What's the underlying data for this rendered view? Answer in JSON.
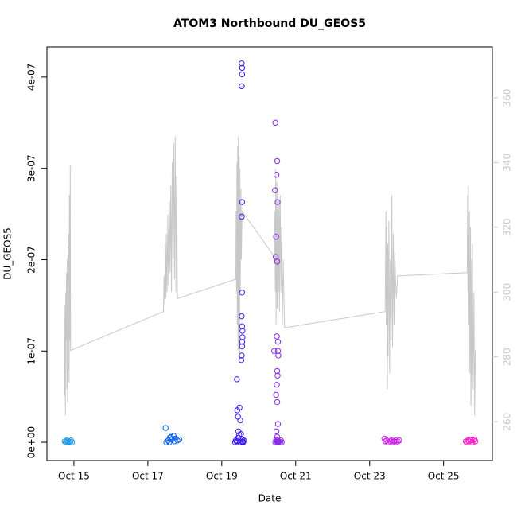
{
  "chart_data": {
    "type": "scatter",
    "title": "ATOM3 Northbound DU_GEOS5",
    "xlabel": "Date",
    "ylabel": "DU_GEOS5",
    "xlim": [
      14.27,
      26.32
    ],
    "xticks": [
      {
        "value": 15,
        "label": "Oct 15"
      },
      {
        "value": 17,
        "label": "Oct 17"
      },
      {
        "value": 19,
        "label": "Oct 19"
      },
      {
        "value": 21,
        "label": "Oct 21"
      },
      {
        "value": 23,
        "label": "Oct 23"
      },
      {
        "value": 25,
        "label": "Oct 25"
      }
    ],
    "ylim": [
      -2e-08,
      4.33e-07
    ],
    "yticks": [
      {
        "value": 0,
        "label": "0e+00"
      },
      {
        "value": 1e-07,
        "label": "1e-07"
      },
      {
        "value": 2e-07,
        "label": "2e-07"
      },
      {
        "value": 3e-07,
        "label": "3e-07"
      },
      {
        "value": 4e-07,
        "label": "4e-07"
      }
    ],
    "y2lim": [
      248,
      375.7
    ],
    "y2ticks": [
      260,
      280,
      300,
      320,
      340,
      360
    ],
    "y2color": "#c8c8c8",
    "series": [
      {
        "color": "#1e9be8",
        "x": [
          14.75,
          14.78,
          14.8,
          14.82,
          14.85,
          14.88,
          14.9,
          14.92,
          14.95
        ],
        "values": [
          1e-09,
          0,
          2e-09,
          1e-09,
          0,
          1e-09,
          0,
          2e-09,
          0
        ]
      },
      {
        "color": "#0a5ee8",
        "x": [
          17.48,
          17.5,
          17.55,
          17.58,
          17.6,
          17.62,
          17.65,
          17.7,
          17.72,
          17.75,
          17.8,
          17.85
        ],
        "values": [
          1.57e-08,
          0,
          2e-09,
          0,
          5e-09,
          6e-09,
          3e-09,
          7e-09,
          1e-09,
          4e-09,
          2e-09,
          3e-09
        ]
      },
      {
        "color": "#3b1ef0",
        "x": [
          19.36,
          19.38,
          19.4,
          19.41,
          19.42,
          19.44,
          19.45,
          19.47,
          19.48,
          19.5,
          19.52,
          19.53,
          19.54,
          19.55,
          19.55,
          19.56,
          19.56,
          19.55,
          19.54,
          19.55,
          19.54,
          19.55,
          19.54,
          19.55,
          19.55,
          19.54,
          19.56,
          19.56,
          19.57,
          19.58,
          19.6,
          19.45,
          19.43,
          19.5
        ],
        "values": [
          0,
          2e-09,
          1e-09,
          6.9e-08,
          3.5e-08,
          2.8e-08,
          1.2e-08,
          8e-09,
          3.8e-08,
          2.4e-08,
          9e-09,
          9e-08,
          9.5e-08,
          1.05e-07,
          1.1e-07,
          1.15e-07,
          1.22e-07,
          1.27e-07,
          1.38e-07,
          1.64e-07,
          2.47e-07,
          2.63e-07,
          3.9e-07,
          4.03e-07,
          4.1e-07,
          4.15e-07,
          0,
          3e-09,
          1e-09,
          0,
          2e-09,
          5e-09,
          1e-09,
          0
        ]
      },
      {
        "color": "#8b2be8",
        "x": [
          20.42,
          20.44,
          20.45,
          20.46,
          20.47,
          20.48,
          20.49,
          20.5,
          20.5,
          20.51,
          20.52,
          20.52,
          20.53,
          20.5,
          20.51,
          20.49,
          20.47,
          20.5,
          20.52,
          20.48,
          20.5,
          20.49,
          20.51,
          20.52,
          20.53,
          20.47,
          20.55,
          20.58,
          20.6,
          20.62,
          20.45,
          20.48
        ],
        "values": [
          1e-07,
          2.76e-07,
          3.5e-07,
          2.03e-07,
          2.25e-07,
          2.93e-07,
          1.16e-07,
          1.98e-07,
          3.08e-07,
          2.63e-07,
          1.1e-07,
          1e-07,
          9.5e-08,
          7.8e-08,
          7.3e-08,
          6.3e-08,
          5.2e-08,
          4.4e-08,
          2e-08,
          1.2e-08,
          6e-09,
          2e-09,
          0,
          1e-09,
          0,
          3e-09,
          1e-09,
          0,
          2e-09,
          0,
          0,
          1e-09
        ]
      },
      {
        "color": "#c81ee6",
        "x": [
          23.4,
          23.43,
          23.46,
          23.5,
          23.53,
          23.56,
          23.6,
          23.63,
          23.66,
          23.7,
          23.73,
          23.76,
          23.8
        ],
        "values": [
          4e-09,
          1e-09,
          2e-09,
          0,
          3e-09,
          1e-09,
          2e-09,
          0,
          1e-09,
          2e-09,
          0,
          1e-09,
          2e-09
        ]
      },
      {
        "color": "#ff1ec8",
        "x": [
          25.6,
          25.63,
          25.66,
          25.69,
          25.72,
          25.75,
          25.78,
          25.81,
          25.84,
          25.86
        ],
        "values": [
          1e-09,
          0,
          2e-09,
          1e-09,
          3e-09,
          2e-09,
          0,
          2e-09,
          3e-09,
          1e-09
        ]
      }
    ],
    "line": {
      "color": "#c8c8c8",
      "axis": "y2",
      "x": [
        14.74,
        14.75,
        14.76,
        14.77,
        14.78,
        14.79,
        14.8,
        14.81,
        14.82,
        14.83,
        14.84,
        14.85,
        14.86,
        14.87,
        14.88,
        14.89,
        14.9,
        14.91,
        17.42,
        17.44,
        17.46,
        17.47,
        17.49,
        17.5,
        17.52,
        17.54,
        17.56,
        17.58,
        17.6,
        17.62,
        17.64,
        17.66,
        17.68,
        17.7,
        17.72,
        17.74,
        17.76,
        17.78,
        17.8,
        19.38,
        19.39,
        19.4,
        19.41,
        19.42,
        19.43,
        19.44,
        19.45,
        19.46,
        19.47,
        19.48,
        19.49,
        19.5,
        19.52,
        19.53,
        19.55,
        20.42,
        20.43,
        20.45,
        20.46,
        20.47,
        20.49,
        20.5,
        20.52,
        20.53,
        20.55,
        20.56,
        20.58,
        20.6,
        20.62,
        20.64,
        20.66,
        20.7,
        23.42,
        23.44,
        23.45,
        23.46,
        23.48,
        23.49,
        23.5,
        23.52,
        23.54,
        23.56,
        23.58,
        23.6,
        23.62,
        23.64,
        23.66,
        23.68,
        23.72,
        23.76,
        25.64,
        25.65,
        25.66,
        25.67,
        25.68,
        25.7,
        25.71,
        25.73,
        25.74,
        25.76,
        25.77,
        25.78,
        25.8,
        25.82,
        25.84,
        25.86
      ],
      "values": [
        292,
        268,
        296,
        262,
        300,
        285,
        306,
        270,
        310,
        266,
        314,
        276,
        318,
        272,
        330,
        285,
        339,
        282,
        294,
        305,
        296,
        315,
        298,
        318,
        300,
        324,
        302,
        328,
        306,
        333,
        300,
        340,
        310,
        346,
        304,
        348,
        300,
        336,
        298,
        304,
        325,
        300,
        340,
        290,
        345,
        282,
        348,
        286,
        342,
        280,
        338,
        300,
        332,
        310,
        325,
        311,
        325,
        300,
        338,
        290,
        334,
        295,
        332,
        300,
        328,
        294,
        330,
        300,
        320,
        290,
        310,
        289,
        294,
        325,
        290,
        320,
        270,
        315,
        280,
        322,
        275,
        310,
        285,
        330,
        283,
        318,
        290,
        312,
        298,
        305,
        306,
        330,
        300,
        333,
        290,
        325,
        275,
        320,
        265,
        310,
        262,
        315,
        270,
        300,
        262,
        282
      ]
    }
  }
}
